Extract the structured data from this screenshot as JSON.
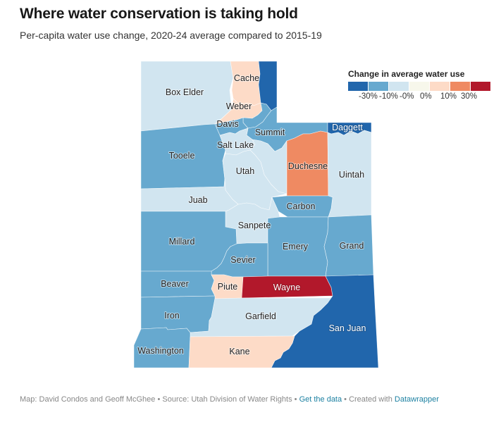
{
  "header": {
    "title": "Where water conservation is taking hold",
    "subtitle": "Per-capita water use change, 2020-24 average compared to 2015-19"
  },
  "legend": {
    "title": "Change in average water use",
    "bins": [
      {
        "color": "#2166ac"
      },
      {
        "color": "#67a9cf"
      },
      {
        "color": "#d1e5f0"
      },
      {
        "color": "#f7f7eb"
      },
      {
        "color": "#fddbc7"
      },
      {
        "color": "#ef8a62"
      },
      {
        "color": "#b2182b"
      }
    ],
    "labels": [
      "-30%",
      "-10%",
      "-0%",
      "0%",
      "10%",
      "30%"
    ]
  },
  "map": {
    "counties": [
      {
        "name": "Box Elder",
        "label": "Box Elder",
        "bin": 2
      },
      {
        "name": "Cache",
        "label": "Cache",
        "bin": 4
      },
      {
        "name": "Rich",
        "label": "",
        "bin": 0
      },
      {
        "name": "Weber",
        "label": "Weber",
        "bin": 4
      },
      {
        "name": "Morgan",
        "label": "",
        "bin": 1
      },
      {
        "name": "Davis",
        "label": "Davis",
        "bin": 1
      },
      {
        "name": "Summit",
        "label": "Summit",
        "bin": 1
      },
      {
        "name": "Daggett",
        "label": "Daggett",
        "bin": 0
      },
      {
        "name": "Tooele",
        "label": "Tooele",
        "bin": 1
      },
      {
        "name": "Salt Lake",
        "label": "Salt Lake",
        "bin": 2
      },
      {
        "name": "Wasatch",
        "label": "",
        "bin": 2
      },
      {
        "name": "Utah",
        "label": "Utah",
        "bin": 2
      },
      {
        "name": "Duchesne",
        "label": "Duchesne",
        "bin": 5
      },
      {
        "name": "Uintah",
        "label": "Uintah",
        "bin": 2
      },
      {
        "name": "Juab",
        "label": "Juab",
        "bin": 2
      },
      {
        "name": "Carbon",
        "label": "Carbon",
        "bin": 1
      },
      {
        "name": "Sanpete",
        "label": "Sanpete",
        "bin": 2
      },
      {
        "name": "Millard",
        "label": "Millard",
        "bin": 1
      },
      {
        "name": "Emery",
        "label": "Emery",
        "bin": 1
      },
      {
        "name": "Grand",
        "label": "Grand",
        "bin": 1
      },
      {
        "name": "Sevier",
        "label": "Sevier",
        "bin": 1
      },
      {
        "name": "Beaver",
        "label": "Beaver",
        "bin": 1
      },
      {
        "name": "Piute",
        "label": "Piute",
        "bin": 4
      },
      {
        "name": "Wayne",
        "label": "Wayne",
        "bin": 6
      },
      {
        "name": "Iron",
        "label": "Iron",
        "bin": 1
      },
      {
        "name": "Garfield",
        "label": "Garfield",
        "bin": 2
      },
      {
        "name": "San Juan",
        "label": "San Juan",
        "bin": 0
      },
      {
        "name": "Washington",
        "label": "Washington",
        "bin": 1
      },
      {
        "name": "Kane",
        "label": "Kane",
        "bin": 4
      }
    ]
  },
  "footer": {
    "credit": "Map: David Condos and Geoff McGhee",
    "separator": " • ",
    "source": "Source: Utah Division of Water Rights",
    "get_data": "Get the data",
    "created_with": "Created with",
    "datawrapper": "Datawrapper"
  }
}
